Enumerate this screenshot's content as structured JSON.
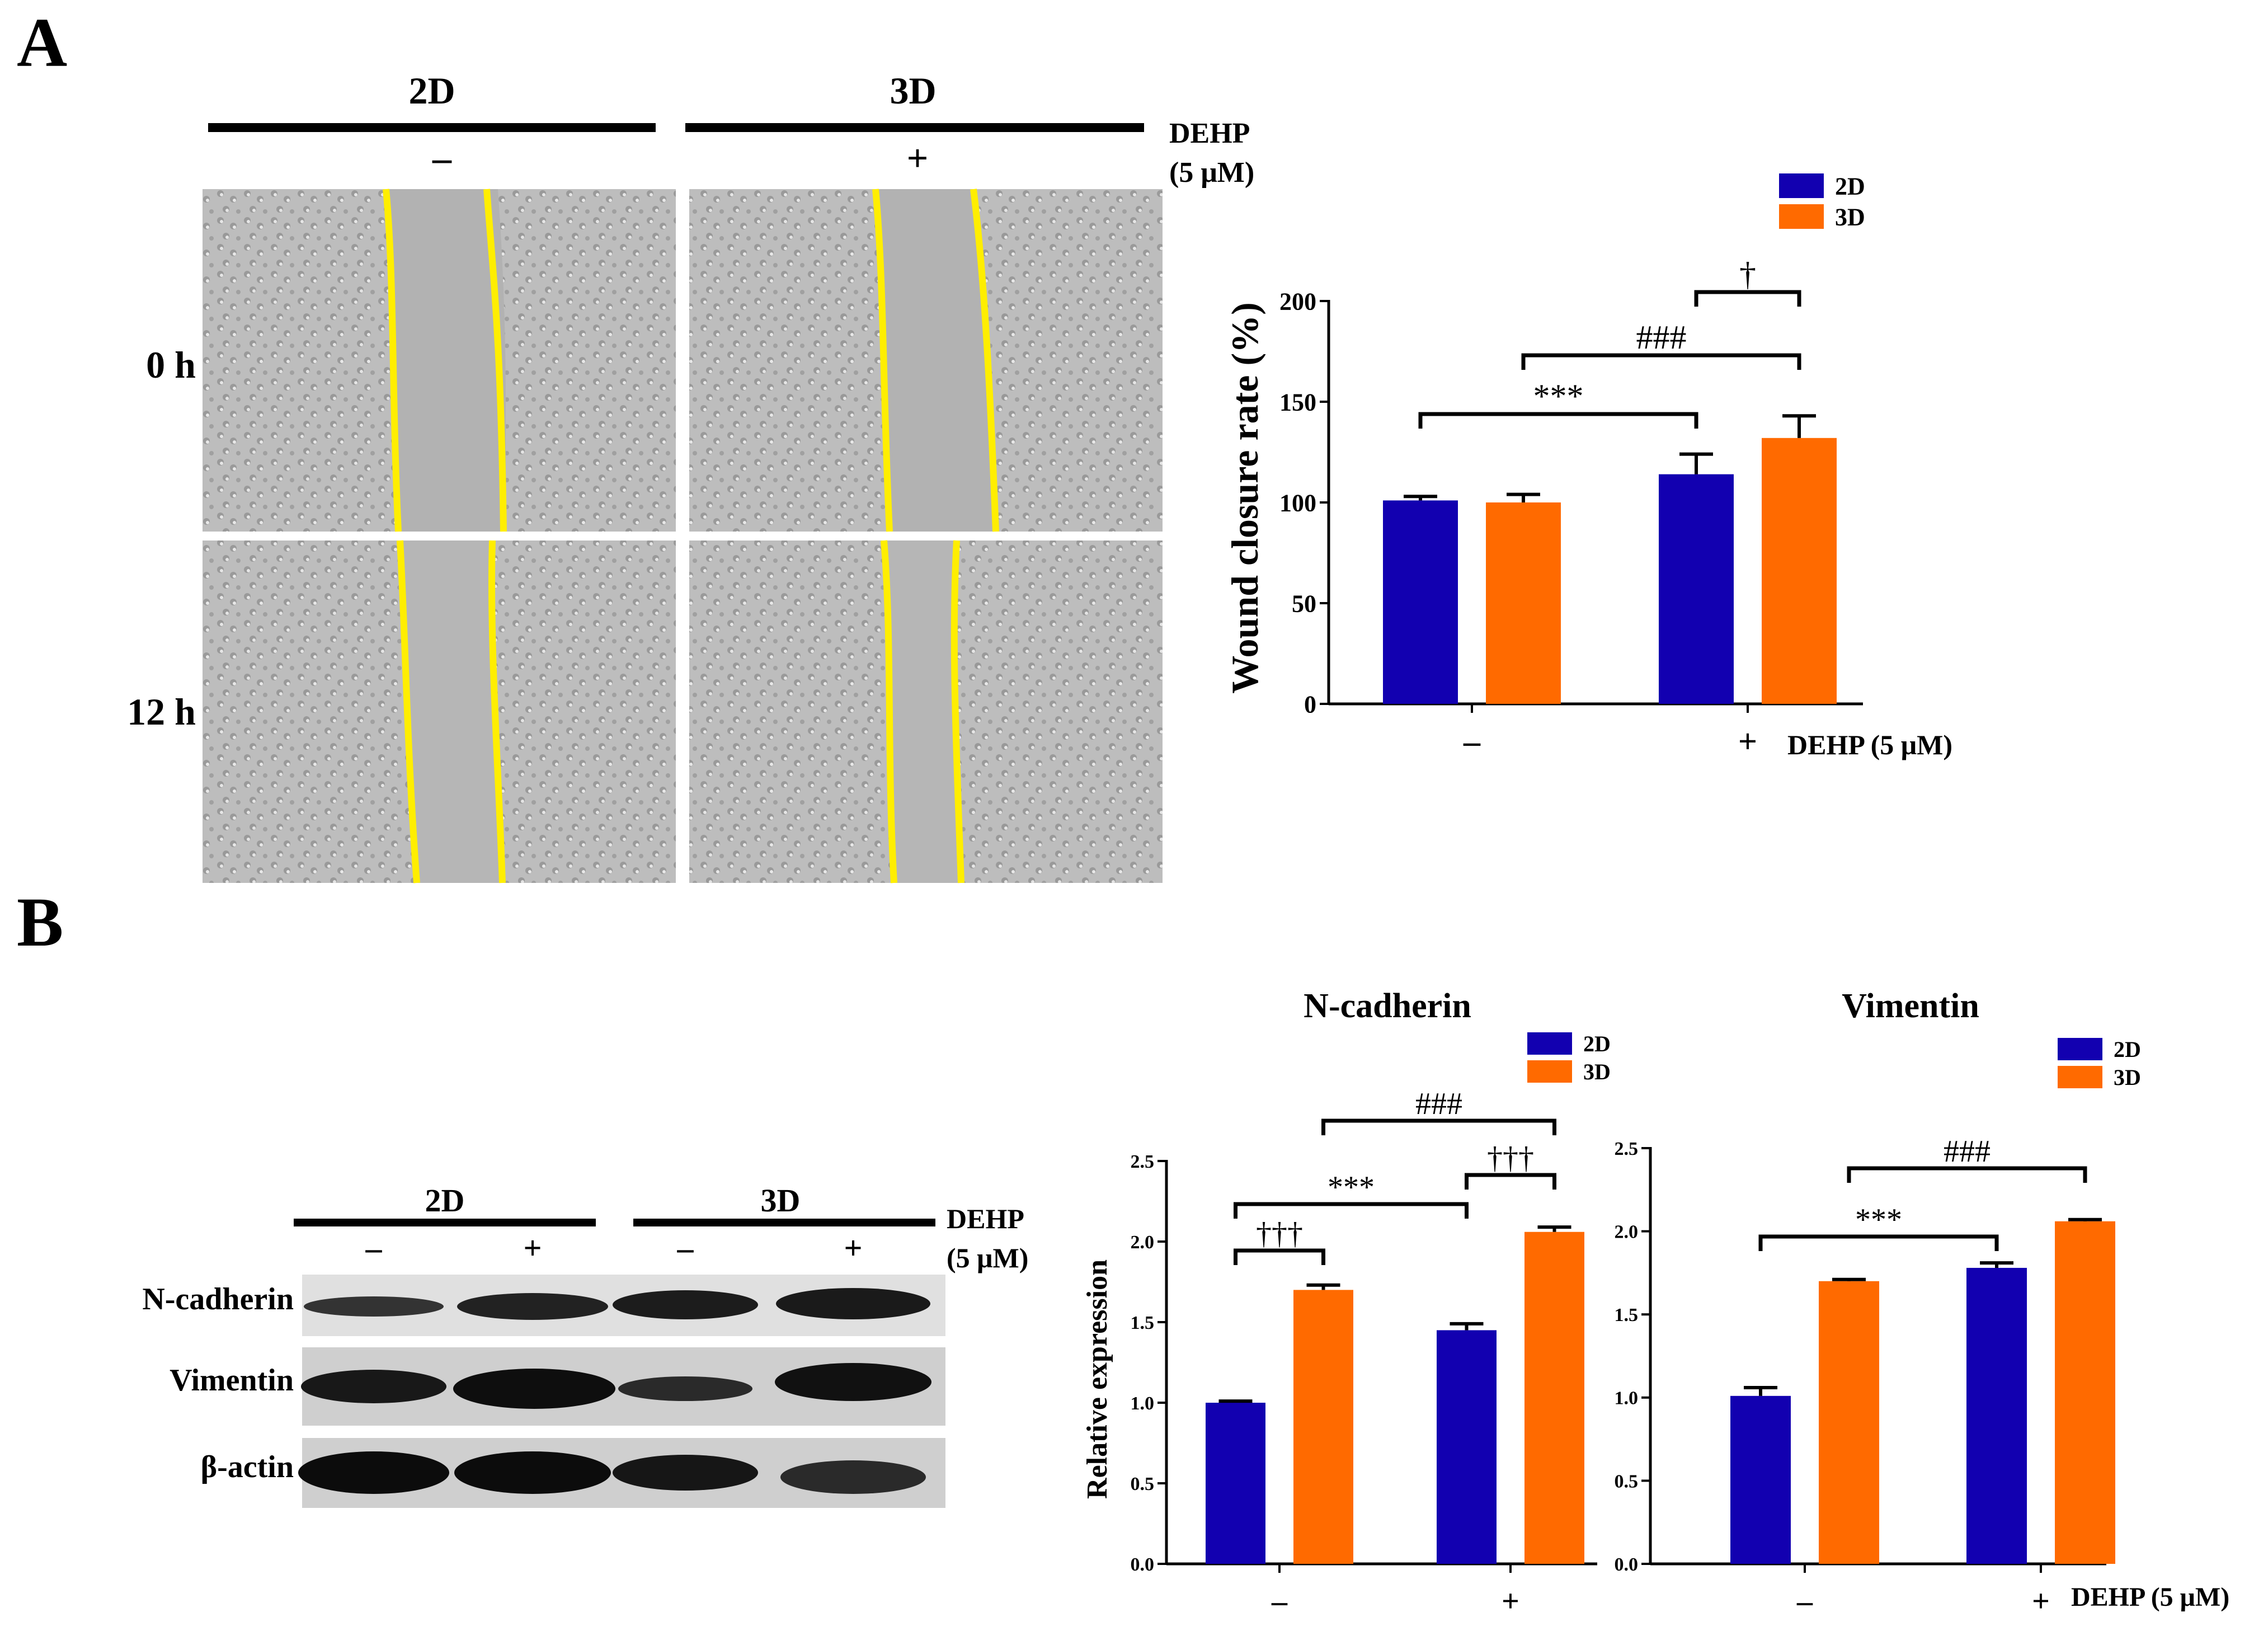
{
  "panels": {
    "a_label": "A",
    "b_label": "B"
  },
  "colors": {
    "series_2d": "#1200b0",
    "series_3d": "#ff6a00",
    "scratch_line": "#ffee00",
    "micro_bg": "#b9b9b9"
  },
  "panel_a": {
    "header_2d": "2D",
    "header_3d": "3D",
    "dehp_label": "DEHP",
    "dehp_conc": "(5 μM)",
    "sign_minus": "–",
    "sign_plus": "+",
    "row_0h": "0 h",
    "row_12h": "12 h"
  },
  "panel_b_blot": {
    "header_2d": "2D",
    "header_3d": "3D",
    "dehp_label": "DEHP",
    "dehp_conc": "(5 μM)",
    "signs": [
      "–",
      "+",
      "–",
      "+"
    ],
    "rows": [
      "N-cadherin",
      "Vimentin",
      "β-actin"
    ]
  },
  "chart_data": [
    {
      "id": "wound",
      "type": "bar",
      "title": "",
      "ylabel": "Wound closure rate (%)",
      "xlabel": "DEHP (5 μM)",
      "categories": [
        "–",
        "+"
      ],
      "ylim": [
        0,
        200
      ],
      "yticks": [
        0,
        50,
        100,
        150,
        200
      ],
      "tick_labels": [
        "0",
        "50",
        "100",
        "150",
        "200"
      ],
      "series": [
        {
          "name": "2D",
          "values": [
            101,
            114
          ],
          "errors": [
            2,
            10
          ]
        },
        {
          "name": "3D",
          "values": [
            100,
            132
          ],
          "errors": [
            4,
            11
          ]
        }
      ],
      "legend": [
        "2D",
        "3D"
      ],
      "legend_position": "top-right",
      "annotations": [
        "***",
        "###",
        "†"
      ]
    },
    {
      "id": "ncad",
      "type": "bar",
      "title": "N-cadherin",
      "ylabel": "Relative expression",
      "xlabel": "",
      "categories": [
        "–",
        "+"
      ],
      "ylim": [
        0,
        2.5
      ],
      "yticks": [
        0,
        0.5,
        1,
        1.5,
        2,
        2.5
      ],
      "tick_labels": [
        "0.0",
        "0.5",
        "1.0",
        "1.5",
        "2.0",
        "2.5"
      ],
      "series": [
        {
          "name": "2D",
          "values": [
            1.0,
            1.45
          ],
          "errors": [
            0.01,
            0.04
          ]
        },
        {
          "name": "3D",
          "values": [
            1.7,
            2.06
          ],
          "errors": [
            0.03,
            0.03
          ]
        }
      ],
      "legend": [
        "2D",
        "3D"
      ],
      "legend_position": "top-right",
      "annotations": [
        "†††",
        "***",
        "†††",
        "###"
      ]
    },
    {
      "id": "vim",
      "type": "bar",
      "title": "Vimentin",
      "ylabel": "",
      "xlabel": "DEHP (5 μM)",
      "categories": [
        "–",
        "+"
      ],
      "ylim": [
        0,
        2.5
      ],
      "yticks": [
        0,
        0.5,
        1,
        1.5,
        2,
        2.5
      ],
      "tick_labels": [
        "0.0",
        "0.5",
        "1.0",
        "1.5",
        "2.0",
        "2.5"
      ],
      "series": [
        {
          "name": "2D",
          "values": [
            1.01,
            1.78
          ],
          "errors": [
            0.05,
            0.03
          ]
        },
        {
          "name": "3D",
          "values": [
            1.7,
            2.06
          ],
          "errors": [
            0.01,
            0.01
          ]
        }
      ],
      "legend": [
        "2D",
        "3D"
      ],
      "legend_position": "top-right",
      "annotations": [
        "***",
        "###"
      ]
    }
  ]
}
